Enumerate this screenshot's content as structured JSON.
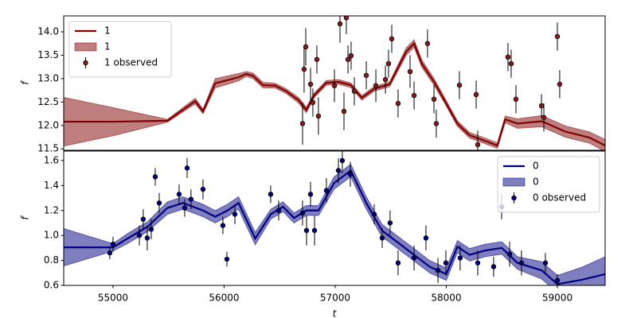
{
  "chart_data": [
    {
      "type": "line",
      "ylabel": "f",
      "xlim": [
        54556,
        59430
      ],
      "ylim": [
        11.47,
        14.34
      ],
      "yticks": [
        11.5,
        {
          "value": 12,
          "label": "12.0"
        },
        12.5,
        {
          "value": 13,
          "label": "13.0"
        },
        13.5,
        {
          "value": 14,
          "label": "14.0"
        }
      ],
      "legend": "upper left",
      "series": [
        {
          "name": "1",
          "color": "#800000",
          "x": [
            54556,
            55000,
            55490,
            55740,
            55810,
            55920,
            56130,
            56200,
            56260,
            56350,
            56460,
            56560,
            56670,
            56740,
            56810,
            56920,
            57030,
            57140,
            57240,
            57350,
            57490,
            57640,
            57710,
            57780,
            57890,
            58000,
            58100,
            58210,
            58350,
            58460,
            58530,
            58640,
            58860,
            59070,
            59290,
            59430
          ],
          "values": [
            12.08,
            12.08,
            12.1,
            12.52,
            12.3,
            12.9,
            13.03,
            13.1,
            13.06,
            12.86,
            12.85,
            12.73,
            12.54,
            12.33,
            12.64,
            12.91,
            12.93,
            12.86,
            12.59,
            12.78,
            12.88,
            13.58,
            13.75,
            13.32,
            12.93,
            12.47,
            12.04,
            11.79,
            11.67,
            11.57,
            12.13,
            12.04,
            12.09,
            11.87,
            11.74,
            11.57
          ]
        },
        {
          "name": "1",
          "color": "#800000",
          "x": [
            54556,
            55000,
            55490,
            55740,
            55810,
            55920,
            56130,
            56200,
            56260,
            56350,
            56460,
            56560,
            56670,
            56740,
            56810,
            56920,
            57030,
            57140,
            57240,
            57350,
            57490,
            57640,
            57710,
            57780,
            57890,
            58000,
            58100,
            58210,
            58350,
            58460,
            58530,
            58640,
            58860,
            59070,
            59290,
            59430
          ],
          "lower": [
            11.56,
            11.78,
            12.07,
            12.46,
            12.25,
            12.8,
            12.95,
            13.05,
            13.0,
            12.8,
            12.8,
            12.68,
            12.48,
            12.27,
            12.59,
            12.86,
            12.88,
            12.81,
            12.54,
            12.73,
            12.83,
            13.5,
            13.67,
            13.24,
            12.86,
            12.41,
            11.98,
            11.73,
            11.61,
            11.51,
            12.06,
            11.94,
            11.97,
            11.75,
            11.62,
            11.44
          ],
          "upper": [
            12.6,
            12.38,
            12.13,
            12.58,
            12.35,
            13.0,
            13.11,
            13.15,
            13.12,
            12.92,
            12.9,
            12.78,
            12.6,
            12.39,
            12.69,
            12.96,
            12.98,
            12.91,
            12.64,
            12.83,
            12.93,
            13.66,
            13.83,
            13.4,
            13.0,
            12.53,
            12.1,
            11.85,
            11.73,
            11.63,
            12.2,
            12.14,
            12.21,
            11.99,
            11.86,
            11.7
          ]
        },
        {
          "name": "1 observed",
          "color": "#8b1a1a",
          "x": [
            56706,
            56720,
            56735,
            56778,
            56799,
            56835,
            56849,
            56993,
            57043,
            57079,
            57100,
            57115,
            57143,
            57172,
            57280,
            57366,
            57452,
            57480,
            57509,
            57566,
            57674,
            57710,
            57831,
            57889,
            57910,
            58118,
            58269,
            58283,
            58555,
            58584,
            58627,
            58857,
            58878,
            59000,
            59021
          ],
          "values": [
            12.04,
            13.2,
            13.68,
            12.88,
            12.49,
            13.41,
            12.2,
            12.85,
            14.17,
            12.3,
            14.3,
            13.41,
            13.49,
            12.73,
            13.07,
            12.85,
            12.98,
            13.32,
            13.85,
            12.47,
            13.15,
            12.64,
            13.75,
            12.56,
            12.04,
            12.86,
            12.66,
            11.59,
            13.46,
            13.32,
            12.56,
            12.42,
            12.17,
            13.9,
            12.88
          ],
          "errors": [
            0.45,
            0.5,
            0.4,
            0.35,
            0.3,
            0.3,
            0.4,
            0.35,
            0.4,
            0.4,
            0.35,
            0.3,
            0.3,
            0.3,
            0.3,
            0.35,
            0.3,
            0.3,
            0.3,
            0.3,
            0.35,
            0.3,
            0.3,
            0.3,
            0.3,
            0.3,
            0.3,
            0.3,
            0.3,
            0.3,
            0.3,
            0.25,
            0.3,
            0.3,
            0.3
          ]
        }
      ]
    },
    {
      "type": "line",
      "xlabel": "t",
      "ylabel": "f",
      "xlim": [
        54556,
        59430
      ],
      "ylim": [
        0.6,
        1.676
      ],
      "xticks": [
        55000,
        56000,
        57000,
        58000,
        59000
      ],
      "yticks": [
        0.6,
        0.8,
        {
          "value": 1,
          "label": "1.0"
        },
        1.2,
        1.4,
        1.6
      ],
      "legend": "upper right",
      "series": [
        {
          "name": "0",
          "color": "#000080",
          "x": [
            54556,
            55000,
            55130,
            55310,
            55490,
            55630,
            55810,
            55920,
            56030,
            56130,
            56280,
            56420,
            56530,
            56630,
            56740,
            56850,
            56990,
            57140,
            57280,
            57420,
            57570,
            57710,
            57850,
            58000,
            58100,
            58210,
            58350,
            58500,
            58640,
            58860,
            59000,
            59220,
            59430
          ],
          "values": [
            0.905,
            0.905,
            0.975,
            1.07,
            1.22,
            1.26,
            1.2,
            1.15,
            1.2,
            1.26,
            0.975,
            1.17,
            1.23,
            1.14,
            1.2,
            1.2,
            1.42,
            1.52,
            1.26,
            1.04,
            0.94,
            0.845,
            0.75,
            0.69,
            0.91,
            0.845,
            0.88,
            0.9,
            0.78,
            0.72,
            0.61,
            0.645,
            0.69
          ]
        },
        {
          "name": "0",
          "color": "#000080",
          "x": [
            54556,
            55000,
            55130,
            55310,
            55490,
            55630,
            55810,
            55920,
            56030,
            56130,
            56280,
            56420,
            56530,
            56630,
            56740,
            56850,
            56990,
            57140,
            57280,
            57420,
            57570,
            57710,
            57850,
            58000,
            58100,
            58210,
            58350,
            58500,
            58640,
            58860,
            59000,
            59220,
            59430
          ],
          "lower": [
            0.755,
            0.875,
            0.935,
            1.03,
            1.17,
            1.21,
            1.15,
            1.1,
            1.15,
            1.21,
            0.925,
            1.13,
            1.19,
            1.1,
            1.16,
            1.16,
            1.37,
            1.47,
            1.21,
            0.99,
            0.89,
            0.795,
            0.7,
            0.64,
            0.86,
            0.795,
            0.83,
            0.85,
            0.73,
            0.65,
            0.54,
            0.545,
            0.55
          ],
          "upper": [
            1.055,
            0.935,
            1.015,
            1.11,
            1.27,
            1.31,
            1.25,
            1.2,
            1.25,
            1.31,
            1.025,
            1.21,
            1.27,
            1.18,
            1.24,
            1.24,
            1.47,
            1.57,
            1.31,
            1.09,
            0.99,
            0.895,
            0.8,
            0.74,
            0.96,
            0.895,
            0.93,
            0.95,
            0.83,
            0.79,
            0.68,
            0.745,
            0.83
          ]
        },
        {
          "name": "0 observed",
          "color": "#000080",
          "x": [
            54971,
            55000,
            55237,
            55272,
            55308,
            55344,
            55380,
            55416,
            55595,
            55645,
            55667,
            55702,
            55810,
            55989,
            56025,
            56097,
            56419,
            56491,
            56706,
            56742,
            56778,
            56814,
            56921,
            57029,
            57064,
            57136,
            57351,
            57423,
            57494,
            57566,
            57710,
            57817,
            57925,
            57996,
            58125,
            58283,
            58426,
            58498,
            58570,
            58677,
            58892,
            59000
          ],
          "values": [
            0.86,
            0.93,
            1.0,
            1.13,
            0.98,
            1.05,
            1.47,
            1.26,
            1.33,
            1.22,
            1.54,
            1.29,
            1.37,
            1.08,
            0.81,
            1.17,
            1.33,
            1.2,
            1.18,
            1.04,
            1.33,
            1.04,
            1.36,
            1.52,
            1.6,
            1.49,
            1.17,
            0.98,
            1.1,
            0.78,
            0.82,
            0.98,
            0.72,
            0.78,
            0.82,
            0.78,
            0.75,
            1.23,
            0.85,
            0.78,
            0.78,
            0.64
          ],
          "errors": [
            0.05,
            0.06,
            0.08,
            0.08,
            0.1,
            0.08,
            0.07,
            0.08,
            0.08,
            0.07,
            0.08,
            0.08,
            0.08,
            0.07,
            0.06,
            0.08,
            0.07,
            0.08,
            0.1,
            0.12,
            0.1,
            0.12,
            0.1,
            0.1,
            0.1,
            0.1,
            0.08,
            0.08,
            0.1,
            0.1,
            0.1,
            0.1,
            0.1,
            0.1,
            0.1,
            0.1,
            0.08,
            0.1,
            0.1,
            0.1,
            0.08,
            0.05
          ]
        }
      ]
    }
  ]
}
